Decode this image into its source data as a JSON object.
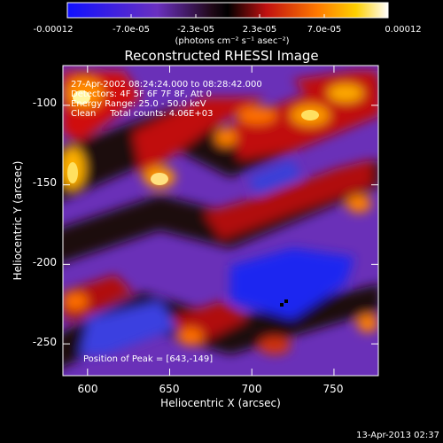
{
  "colorbar": {
    "ticks": [
      "-0.00012",
      "-7.0e-05",
      "-2.3e-05",
      "2.3e-05",
      "7.0e-05",
      "0.00012"
    ],
    "units": "(photons cm⁻² s⁻¹ asec⁻²)",
    "colors": [
      "#1010ff",
      "#6030c0",
      "#000000",
      "#c01010",
      "#ff8000",
      "#ffffff"
    ]
  },
  "chart_data": {
    "type": "heatmap",
    "title": "Reconstructed RHESSI Image",
    "xlabel": "Heliocentric X (arcsec)",
    "ylabel": "Heliocentric Y (arcsec)",
    "xlim": [
      585,
      777
    ],
    "ylim": [
      -270,
      -75
    ],
    "xticks": [
      "600",
      "650",
      "700",
      "750"
    ],
    "yticks": [
      "-100",
      "-150",
      "-200",
      "-250"
    ],
    "xtick_values": [
      600,
      650,
      700,
      750
    ],
    "ytick_values": [
      -100,
      -150,
      -200,
      -250
    ],
    "annotations": [
      "27-Apr-2002 08:24:24.000 to 08:28:42.000",
      "Detectors: 4F 5F 6F 7F 8F, Att 0",
      "Energy Range: 25.0 - 50.0 keV",
      "Clean     Total counts: 4.06E+03",
      "Position of Peak = [643,-149]"
    ],
    "peak": [
      643,
      -149
    ]
  },
  "footer": {
    "timestamp": "13-Apr-2013 02:37"
  }
}
